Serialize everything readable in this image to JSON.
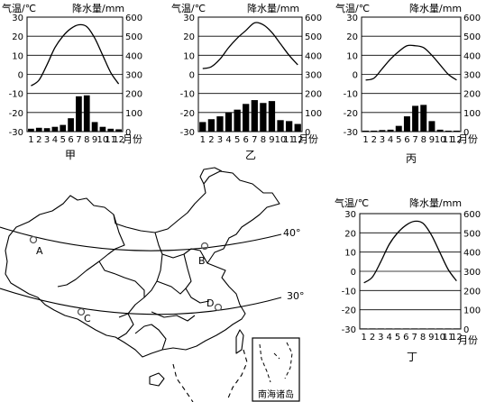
{
  "charts": [
    {
      "id": "jia",
      "caption": "甲",
      "temp_label": "气温/℃",
      "precip_label": "降水量/mm",
      "temp_ticks": [
        "30",
        "20",
        "10",
        "0",
        "-10",
        "-20",
        "-30"
      ],
      "precip_ticks": [
        "600",
        "500",
        "400",
        "300",
        "200",
        "100",
        "0"
      ],
      "month_ticks": [
        "1",
        "2",
        "3",
        "4",
        "5",
        "6",
        "7",
        "8",
        "9",
        "10",
        "11",
        "12"
      ],
      "month_unit": "月份",
      "temp_range": [
        -30,
        30
      ],
      "precip_range": [
        0,
        600
      ],
      "temperature_c": [
        -6,
        -3,
        5,
        14,
        20,
        24,
        26,
        25,
        19,
        10,
        1,
        -5
      ],
      "precipitation_mm": [
        15,
        20,
        18,
        25,
        35,
        70,
        185,
        190,
        50,
        25,
        15,
        12
      ]
    },
    {
      "id": "yi",
      "caption": "乙",
      "temp_label": "气温/℃",
      "precip_label": "降水量/mm",
      "temp_ticks": [
        "30",
        "20",
        "10",
        "0",
        "-10",
        "-20",
        "-30"
      ],
      "precip_ticks": [
        "600",
        "500",
        "400",
        "300",
        "200",
        "100",
        "0"
      ],
      "month_ticks": [
        "1",
        "2",
        "3",
        "4",
        "5",
        "6",
        "7",
        "8",
        "9",
        "10",
        "11",
        "12"
      ],
      "month_unit": "月份",
      "temp_range": [
        -30,
        30
      ],
      "precip_range": [
        0,
        600
      ],
      "temperature_c": [
        3,
        4,
        8,
        14,
        19,
        23,
        27,
        26,
        22,
        16,
        10,
        5
      ],
      "precipitation_mm": [
        50,
        65,
        80,
        100,
        115,
        145,
        165,
        150,
        160,
        60,
        55,
        40
      ]
    },
    {
      "id": "bing",
      "caption": "丙",
      "temp_label": "气温/℃",
      "precip_label": "降水量/mm",
      "temp_ticks": [
        "30",
        "20",
        "10",
        "0",
        "-10",
        "-20",
        "-30"
      ],
      "precip_ticks": [
        "600",
        "500",
        "400",
        "300",
        "200",
        "100",
        "0"
      ],
      "month_ticks": [
        "1",
        "2",
        "3",
        "4",
        "5",
        "6",
        "7",
        "8",
        "9",
        "10",
        "11",
        "12"
      ],
      "month_unit": "月份",
      "temp_range": [
        -30,
        30
      ],
      "precip_range": [
        0,
        600
      ],
      "temperature_c": [
        -3,
        -2,
        3,
        8,
        12,
        15,
        15,
        14,
        10,
        5,
        0,
        -3
      ],
      "precipitation_mm": [
        5,
        5,
        8,
        10,
        30,
        80,
        135,
        140,
        55,
        10,
        5,
        5
      ]
    },
    {
      "id": "ding",
      "caption": "丁",
      "temp_label": "气温/℃",
      "precip_label": "降水量/mm",
      "temp_ticks": [
        "30",
        "20",
        "10",
        "0",
        "-10",
        "-20",
        "-30"
      ],
      "precip_ticks": [
        "600",
        "500",
        "400",
        "300",
        "200",
        "100",
        "0"
      ],
      "month_ticks": [
        "1",
        "2",
        "3",
        "4",
        "5",
        "6",
        "7",
        "8",
        "9",
        "10",
        "11",
        "12"
      ],
      "month_unit": "月份",
      "temp_range": [
        -30,
        30
      ],
      "precip_range": [
        0,
        600
      ],
      "temperature_c": [
        -6,
        -3,
        5,
        14,
        20,
        24,
        26,
        25,
        19,
        10,
        1,
        -5
      ],
      "precipitation_mm": [
        3,
        3,
        3,
        3,
        3,
        3,
        3,
        3,
        3,
        3,
        3,
        3
      ]
    }
  ],
  "map": {
    "latitude_labels": [
      "40°",
      "30°"
    ],
    "points": [
      "A",
      "B",
      "C",
      "D"
    ],
    "inset_label": "南海诸岛"
  }
}
